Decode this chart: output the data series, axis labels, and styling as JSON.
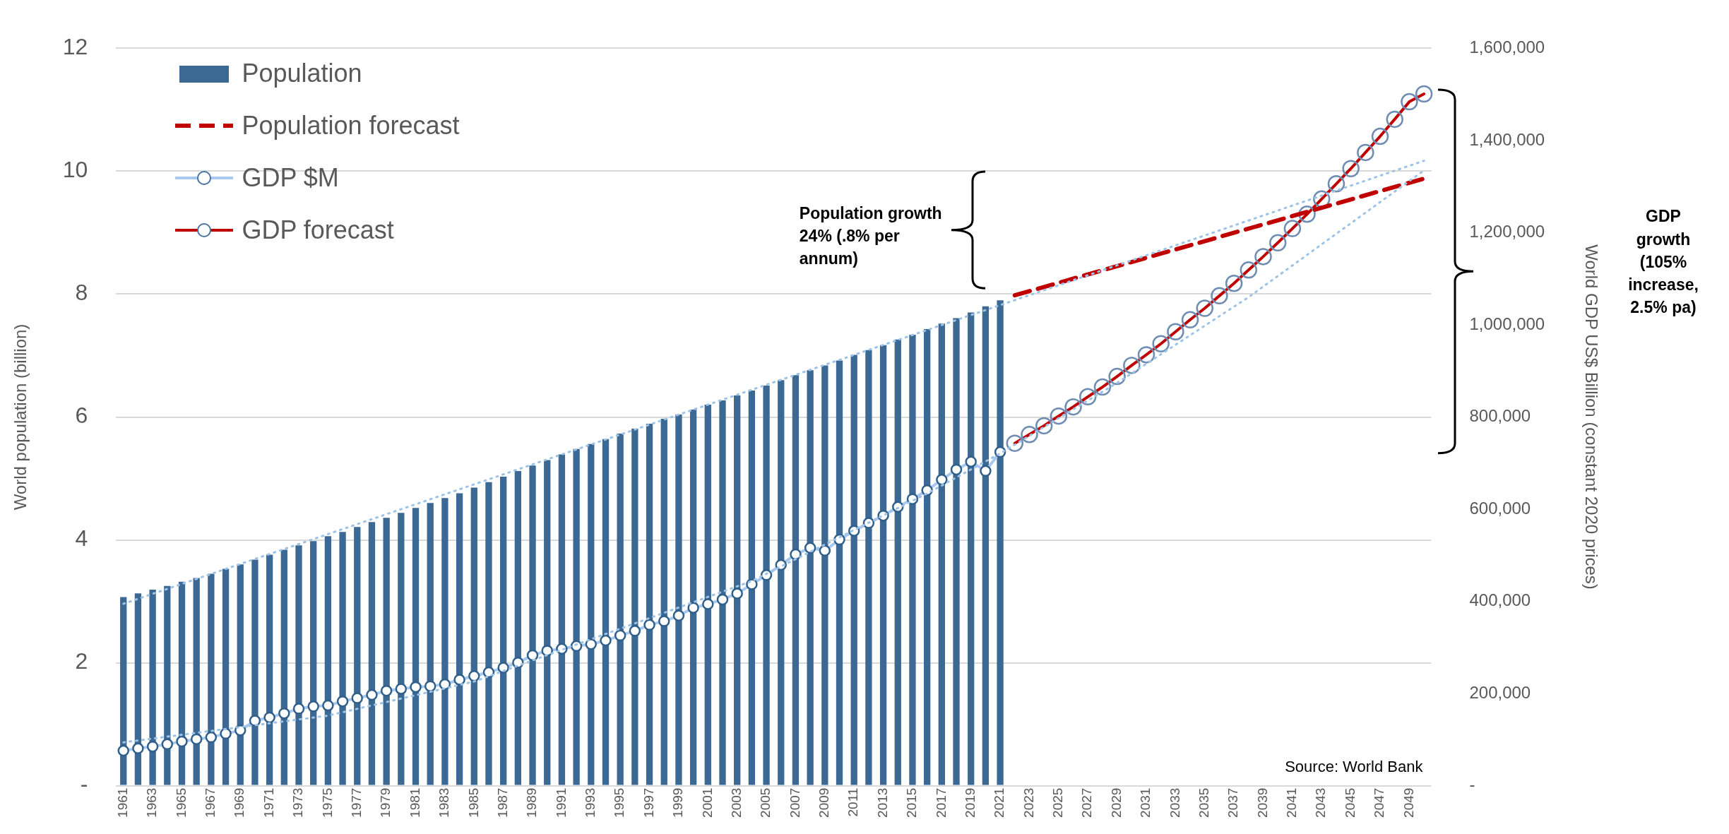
{
  "chart_data": {
    "type": "bar",
    "categories": [
      "1961",
      null,
      "1963",
      null,
      "1965",
      null,
      "1967",
      null,
      "1969",
      null,
      "1971",
      null,
      "1973",
      null,
      "1975",
      null,
      "1977",
      null,
      "1979",
      null,
      "1981",
      null,
      "1983",
      null,
      "1985",
      null,
      "1987",
      null,
      "1989",
      null,
      "1991",
      null,
      "1993",
      null,
      "1995",
      null,
      "1997",
      null,
      "1999",
      null,
      "2001",
      null,
      "2003",
      null,
      "2005",
      null,
      "2007",
      null,
      "2009",
      null,
      "2011",
      null,
      "2013",
      null,
      "2015",
      null,
      "2017",
      null,
      "2019",
      null,
      "2021",
      null,
      "2023",
      null,
      "2025",
      null,
      "2027",
      null,
      "2029",
      null,
      "2031",
      null,
      "2033",
      null,
      "2035",
      null,
      "2037",
      null,
      "2039",
      null,
      "2041",
      null,
      "2043",
      null,
      "2045",
      null,
      "2047",
      null,
      "2049",
      null
    ],
    "ylabel": "World population (billion)",
    "y2label": "World GDP US$ Billion (constant 2020 prices)",
    "ylim": [
      0,
      12
    ],
    "yticks": [
      {
        "value": 0,
        "label": "-"
      },
      2,
      4,
      6,
      8,
      10,
      12
    ],
    "y2lim": [
      0,
      1600000
    ],
    "y2ticks": [
      {
        "value": 0,
        "label": "-"
      },
      {
        "value": 200000,
        "label": "200,000"
      },
      {
        "value": 400000,
        "label": "400,000"
      },
      {
        "value": 600000,
        "label": "600,000"
      },
      {
        "value": 800000,
        "label": "800,000"
      },
      {
        "value": 1000000,
        "label": "1,000,000"
      },
      {
        "value": 1200000,
        "label": "1,200,000"
      },
      {
        "value": 1400000,
        "label": "1,400,000"
      },
      {
        "value": 1600000,
        "label": "1,600,000"
      }
    ],
    "grid": "y",
    "legend": "top left",
    "annotations": [
      "Population growth 24% (.8% per annum)",
      "GDP growth (105% increase, 2.5% pa)",
      "Source: World Bank"
    ],
    "series": [
      {
        "name": "Population",
        "color": "#3c6894",
        "values": [
          3.07,
          3.13,
          3.19,
          3.25,
          3.32,
          3.38,
          3.45,
          3.53,
          3.6,
          3.68,
          3.76,
          3.84,
          3.91,
          3.98,
          4.06,
          4.13,
          4.21,
          4.29,
          4.36,
          4.44,
          4.52,
          4.6,
          4.68,
          4.76,
          4.85,
          4.94,
          5.03,
          5.12,
          5.21,
          5.3,
          5.39,
          5.48,
          5.56,
          5.64,
          5.73,
          5.81,
          5.89,
          5.97,
          6.04,
          6.12,
          6.2,
          6.27,
          6.35,
          6.43,
          6.51,
          6.6,
          6.68,
          6.76,
          6.84,
          6.92,
          7.01,
          7.09,
          7.17,
          7.26,
          7.34,
          7.43,
          7.52,
          7.61,
          7.7,
          7.8,
          7.9,
          null,
          null,
          null,
          null,
          null,
          null,
          null,
          null,
          null,
          null,
          null,
          null,
          null,
          null,
          null,
          null,
          null,
          null,
          null,
          null,
          null,
          null,
          null,
          null,
          null,
          null,
          null,
          null,
          null
        ]
      },
      {
        "name": "Population forecast",
        "type": "line",
        "color": "#c00000",
        "line_style": "dashed",
        "marker": "none",
        "values": [
          null,
          null,
          null,
          null,
          null,
          null,
          null,
          null,
          null,
          null,
          null,
          null,
          null,
          null,
          null,
          null,
          null,
          null,
          null,
          null,
          null,
          null,
          null,
          null,
          null,
          null,
          null,
          null,
          null,
          null,
          null,
          null,
          null,
          null,
          null,
          null,
          null,
          null,
          null,
          null,
          null,
          null,
          null,
          null,
          null,
          null,
          null,
          null,
          null,
          null,
          null,
          null,
          null,
          null,
          null,
          null,
          null,
          null,
          null,
          null,
          null,
          7.98,
          null,
          null,
          null,
          null,
          null,
          null,
          null,
          null,
          null,
          null,
          null,
          null,
          null,
          null,
          null,
          null,
          null,
          null,
          null,
          null,
          null,
          null,
          null,
          null,
          null,
          null,
          null,
          9.88
        ]
      },
      {
        "name": "GDP $M",
        "type": "line",
        "axis": "y2",
        "color": "#a9c8f0",
        "line_style": "solid",
        "marker": "circle",
        "values": [
          76000,
          81000,
          85000,
          90000,
          96000,
          101000,
          105000,
          113000,
          120000,
          141000,
          148000,
          157000,
          167000,
          172000,
          174000,
          183000,
          190000,
          197000,
          206000,
          210000,
          214000,
          216000,
          220000,
          230000,
          238000,
          246000,
          256000,
          267000,
          283000,
          293000,
          297000,
          303000,
          307000,
          315000,
          326000,
          336000,
          349000,
          357000,
          369000,
          386000,
          394000,
          404000,
          417000,
          437000,
          457000,
          479000,
          502000,
          516000,
          510000,
          534000,
          553000,
          570000,
          586000,
          605000,
          622000,
          641000,
          664000,
          686000,
          703000,
          683000,
          724000,
          null,
          null,
          null,
          null,
          null,
          null,
          null,
          null,
          null,
          null,
          null,
          null,
          null,
          null,
          null,
          null,
          null,
          null,
          null,
          null,
          null,
          null,
          null,
          null,
          null,
          null,
          null,
          null,
          null
        ]
      },
      {
        "name": "GDP forecast",
        "type": "line",
        "axis": "y2",
        "color": "#c00000",
        "line_style": "solid",
        "marker": "circle",
        "values": [
          null,
          null,
          null,
          null,
          null,
          null,
          null,
          null,
          null,
          null,
          null,
          null,
          null,
          null,
          null,
          null,
          null,
          null,
          null,
          null,
          null,
          null,
          null,
          null,
          null,
          null,
          null,
          null,
          null,
          null,
          null,
          null,
          null,
          null,
          null,
          null,
          null,
          null,
          null,
          null,
          null,
          null,
          null,
          null,
          null,
          null,
          null,
          null,
          null,
          null,
          null,
          null,
          null,
          null,
          null,
          null,
          null,
          null,
          null,
          null,
          null,
          743000,
          762000,
          781000,
          802000,
          822000,
          844000,
          865000,
          888000,
          912000,
          935000,
          959000,
          985000,
          1011000,
          1036000,
          1063000,
          1090000,
          1119000,
          1148000,
          1178000,
          1209000,
          1240000,
          1273000,
          1306000,
          1339000,
          1374000,
          1409000,
          1446000,
          1484000,
          1501000
        ]
      },
      {
        "type": "line",
        "color": "#9dc3e6",
        "line_style": "dotted",
        "marker": "none",
        "values": [
          2.96,
          null,
          null,
          null,
          null,
          null,
          null,
          null,
          null,
          null,
          null,
          null,
          null,
          null,
          null,
          null,
          null,
          null,
          null,
          null,
          null,
          null,
          null,
          null,
          null,
          null,
          null,
          null,
          null,
          null,
          null,
          null,
          null,
          null,
          null,
          null,
          null,
          null,
          null,
          null,
          null,
          null,
          null,
          null,
          null,
          null,
          null,
          null,
          null,
          null,
          null,
          null,
          null,
          null,
          null,
          null,
          null,
          null,
          null,
          null,
          null,
          null,
          null,
          null,
          null,
          null,
          null,
          null,
          null,
          null,
          null,
          null,
          null,
          null,
          null,
          null,
          null,
          null,
          null,
          null,
          null,
          null,
          null,
          null,
          null,
          null,
          null,
          null,
          null,
          10.17
        ]
      },
      {
        "type": "line",
        "axis": "y2",
        "color": "#9dc3e6",
        "line_style": "dotted",
        "marker": "none",
        "values": [
          94000,
          null,
          null,
          null,
          null,
          null,
          null,
          null,
          null,
          null,
          null,
          null,
          null,
          null,
          152000,
          null,
          null,
          null,
          null,
          null,
          null,
          null,
          null,
          null,
          226000,
          null,
          null,
          null,
          null,
          null,
          null,
          null,
          null,
          null,
          null,
          null,
          null,
          null,
          null,
          null,
          null,
          null,
          null,
          444000,
          null,
          null,
          null,
          null,
          null,
          null,
          null,
          null,
          null,
          null,
          null,
          634000,
          null,
          null,
          null,
          null,
          721000,
          null,
          null,
          null,
          null,
          null,
          null,
          null,
          874000,
          null,
          null,
          null,
          null,
          null,
          null,
          null,
          null,
          1060000,
          null,
          null,
          null,
          null,
          null,
          null,
          null,
          null,
          null,
          null,
          null,
          1335000
        ]
      }
    ]
  }
}
